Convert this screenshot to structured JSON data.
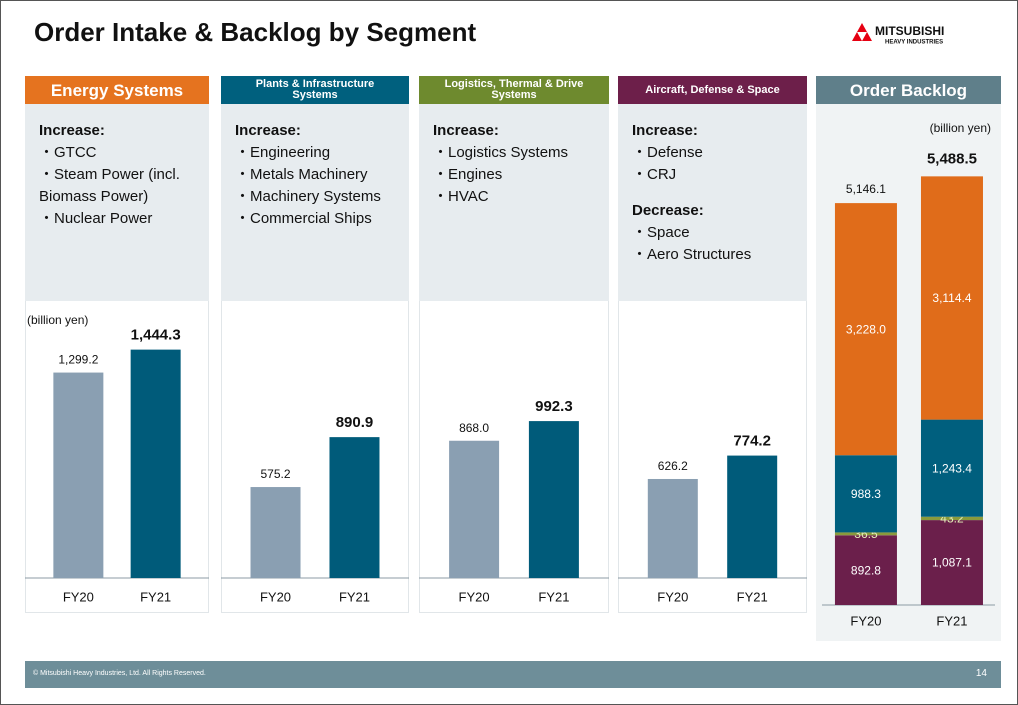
{
  "title": "Order Intake & Backlog by Segment",
  "logo": [
    "MITSUBISHI",
    "HEAVY INDUSTRIES"
  ],
  "footer": "© Mitsubishi Heavy Industries, Ltd.  All Rights Reserved.",
  "page_number": 14,
  "chart_data": [
    {
      "type": "bar",
      "title": "Energy Systems",
      "header_color": "#e5731f",
      "notes": [
        {
          "heading": "Increase:",
          "items": [
            "・GTCC",
            "・Steam Power (incl. Biomass Power)",
            "・Nuclear Power"
          ]
        }
      ],
      "unit": "(billion yen)",
      "categories": [
        "FY20",
        "FY21"
      ],
      "values": [
        1299.2,
        1444.3
      ],
      "value_labels": [
        "1,299.2",
        "1,444.3"
      ],
      "colors": [
        "#8a9fb2",
        "#005b7a"
      ],
      "ylim": [
        0,
        1600
      ]
    },
    {
      "type": "bar",
      "title": "Plants & Infrastructure Systems",
      "header_color": "#00607e",
      "notes": [
        {
          "heading": "Increase:",
          "items": [
            "・Engineering",
            "・Metals Machinery",
            "・Machinery Systems",
            "・Commercial Ships"
          ]
        }
      ],
      "categories": [
        "FY20",
        "FY21"
      ],
      "values": [
        575.2,
        890.9
      ],
      "value_labels": [
        "575.2",
        "890.9"
      ],
      "colors": [
        "#8a9fb2",
        "#005b7a"
      ],
      "ylim": [
        0,
        1600
      ]
    },
    {
      "type": "bar",
      "title": "Logistics, Thermal & Drive Systems",
      "header_color": "#6e8a2e",
      "notes": [
        {
          "heading": "Increase:",
          "items": [
            "・Logistics Systems",
            "・Engines",
            "・HVAC"
          ]
        }
      ],
      "categories": [
        "FY20",
        "FY21"
      ],
      "values": [
        868.0,
        992.3
      ],
      "value_labels": [
        "868.0",
        "992.3"
      ],
      "colors": [
        "#8a9fb2",
        "#005b7a"
      ],
      "ylim": [
        0,
        1600
      ]
    },
    {
      "type": "bar",
      "title": "Aircraft, Defense & Space",
      "header_color": "#6d1f4a",
      "notes": [
        {
          "heading": "Increase:",
          "items": [
            "・Defense",
            "・CRJ"
          ]
        },
        {
          "heading": "Decrease:",
          "items": [
            "・Space",
            "・Aero Structures"
          ]
        }
      ],
      "categories": [
        "FY20",
        "FY21"
      ],
      "values": [
        626.2,
        774.2
      ],
      "value_labels": [
        "626.2",
        "774.2"
      ],
      "colors": [
        "#8a9fb2",
        "#005b7a"
      ],
      "ylim": [
        0,
        1600
      ]
    },
    {
      "type": "stacked_bar",
      "title": "Order Backlog",
      "header_color": "#5f7f8a",
      "unit": "(billion yen)",
      "categories": [
        "FY20",
        "FY21"
      ],
      "series": [
        {
          "color": "#6b1f4b",
          "label_color": "#ffffff",
          "values": [
            892.8,
            1087.1
          ],
          "value_labels": [
            "892.8",
            "1,087.1"
          ]
        },
        {
          "color": "#8a9a3c",
          "label_color": "#e4edb8",
          "values": [
            36.5,
            43.2
          ]
        },
        {
          "color": "#005f7e",
          "label_color": "#ffffff",
          "values": [
            988.3,
            1243.4
          ],
          "value_labels": [
            "988.3",
            "1,243.4"
          ]
        },
        {
          "color": "#e06c1a",
          "label_color": "#ffffff",
          "values": [
            3228.0,
            3114.4
          ],
          "value_labels": [
            "3,228.0",
            "3,114.4"
          ]
        }
      ],
      "totals": [
        5146.1,
        5488.5
      ],
      "total_labels": [
        "5,146.1",
        "5,488.5"
      ],
      "ylim": [
        0,
        5800
      ]
    }
  ]
}
